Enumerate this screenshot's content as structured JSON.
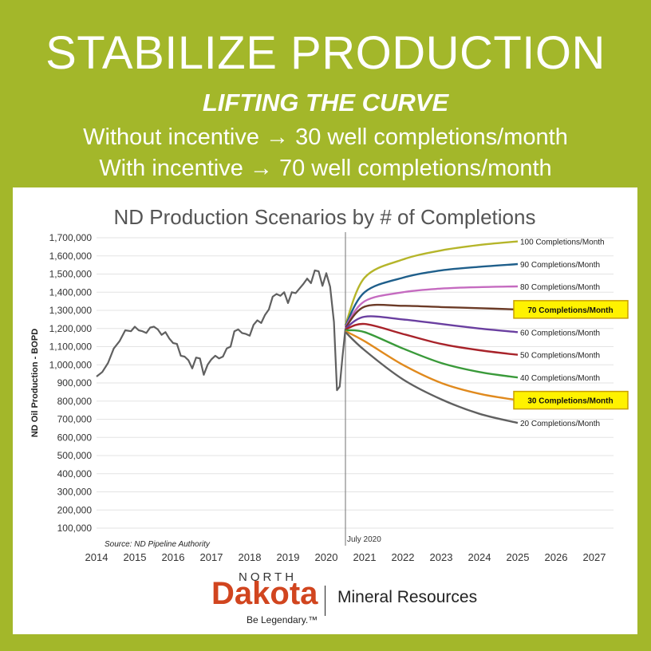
{
  "header": {
    "title": "STABILIZE PRODUCTION",
    "subtitle": "LIFTING THE CURVE",
    "line1": "Without incentive → 30 well completions/month",
    "line2": "With incentive → 70 well completions/month"
  },
  "logo": {
    "north": "NORTH",
    "dakota": "Dakota",
    "tagline": "Be Legendary.™",
    "division": "Mineral Resources"
  },
  "colors": {
    "background": "#a3b72a",
    "highlight_box": "#fff200",
    "highlight_border": "#c8a000"
  },
  "chart_data": {
    "type": "line",
    "title": "ND Production Scenarios by # of Completions",
    "ylabel": "ND Oil Production - BOPD",
    "xlabel": "",
    "ylim": [
      100000,
      1700000
    ],
    "xlim": [
      2014,
      2027.5
    ],
    "grid": true,
    "y_ticks": [
      "1,700,000",
      "1,600,000",
      "1,500,000",
      "1,400,000",
      "1,300,000",
      "1,200,000",
      "1,100,000",
      "1,000,000",
      "900,000",
      "800,000",
      "700,000",
      "600,000",
      "500,000",
      "400,000",
      "300,000",
      "200,000",
      "100,000"
    ],
    "x_ticks": [
      "2014",
      "2015",
      "2016",
      "2017",
      "2018",
      "2019",
      "2020",
      "2021",
      "2022",
      "2023",
      "2024",
      "2025",
      "2026",
      "2027"
    ],
    "source": "Source: ND Pipeline Authority",
    "marker_label": "July 2020",
    "marker_x": 2020.5,
    "historical": {
      "name": "",
      "color": "#606060",
      "x": [
        2014.0,
        2014.15,
        2014.3,
        2014.45,
        2014.6,
        2014.75,
        2014.9,
        2015.0,
        2015.1,
        2015.2,
        2015.3,
        2015.4,
        2015.5,
        2015.6,
        2015.7,
        2015.8,
        2015.9,
        2016.0,
        2016.1,
        2016.2,
        2016.3,
        2016.4,
        2016.5,
        2016.6,
        2016.7,
        2016.8,
        2016.9,
        2017.0,
        2017.1,
        2017.2,
        2017.3,
        2017.4,
        2017.5,
        2017.6,
        2017.7,
        2017.8,
        2017.9,
        2018.0,
        2018.1,
        2018.2,
        2018.3,
        2018.4,
        2018.5,
        2018.6,
        2018.7,
        2018.8,
        2018.9,
        2019.0,
        2019.1,
        2019.2,
        2019.3,
        2019.4,
        2019.5,
        2019.6,
        2019.7,
        2019.8,
        2019.9,
        2020.0,
        2020.1,
        2020.2,
        2020.28,
        2020.35,
        2020.42,
        2020.5
      ],
      "y": [
        935000,
        960000,
        1010000,
        1090000,
        1130000,
        1190000,
        1185000,
        1210000,
        1190000,
        1185000,
        1175000,
        1205000,
        1210000,
        1195000,
        1165000,
        1180000,
        1145000,
        1120000,
        1115000,
        1050000,
        1045000,
        1025000,
        980000,
        1040000,
        1035000,
        945000,
        1000000,
        1030000,
        1050000,
        1035000,
        1045000,
        1090000,
        1100000,
        1185000,
        1195000,
        1175000,
        1170000,
        1160000,
        1220000,
        1245000,
        1230000,
        1275000,
        1305000,
        1375000,
        1390000,
        1380000,
        1400000,
        1340000,
        1400000,
        1395000,
        1420000,
        1445000,
        1475000,
        1450000,
        1520000,
        1515000,
        1435000,
        1505000,
        1430000,
        1235000,
        860000,
        880000,
        1040000,
        1200000
      ]
    },
    "scenarios": [
      {
        "name": "100 Completions/Month",
        "color": "#b5b52a",
        "highlight": false,
        "x": [
          2020.5,
          2021,
          2022,
          2023,
          2024,
          2025
        ],
        "y": [
          1220000,
          1480000,
          1580000,
          1630000,
          1660000,
          1680000
        ]
      },
      {
        "name": "90 Completions/Month",
        "color": "#1f5f8b",
        "highlight": false,
        "x": [
          2020.5,
          2021,
          2022,
          2023,
          2024,
          2025
        ],
        "y": [
          1215000,
          1400000,
          1480000,
          1520000,
          1540000,
          1555000
        ]
      },
      {
        "name": "80 Completions/Month",
        "color": "#c56bc0",
        "highlight": false,
        "x": [
          2020.5,
          2021,
          2022,
          2023,
          2024,
          2025
        ],
        "y": [
          1210000,
          1350000,
          1400000,
          1420000,
          1428000,
          1432000
        ]
      },
      {
        "name": "70 Completions/Month",
        "color": "#6b3a26",
        "highlight": true,
        "x": [
          2020.5,
          2021,
          2022,
          2023,
          2024,
          2025
        ],
        "y": [
          1205000,
          1320000,
          1325000,
          1318000,
          1312000,
          1305000
        ]
      },
      {
        "name": "60 Completions/Month",
        "color": "#6a3fa0",
        "highlight": false,
        "x": [
          2020.5,
          2021,
          2022,
          2023,
          2024,
          2025
        ],
        "y": [
          1200000,
          1265000,
          1250000,
          1225000,
          1200000,
          1180000
        ]
      },
      {
        "name": "50 Completions/Month",
        "color": "#a8232a",
        "highlight": false,
        "x": [
          2020.5,
          2021,
          2022,
          2023,
          2024,
          2025
        ],
        "y": [
          1195000,
          1225000,
          1170000,
          1115000,
          1080000,
          1055000
        ]
      },
      {
        "name": "40 Completions/Month",
        "color": "#3a9a3a",
        "highlight": false,
        "x": [
          2020.5,
          2021,
          2022,
          2023,
          2024,
          2025
        ],
        "y": [
          1190000,
          1180000,
          1090000,
          1010000,
          960000,
          930000
        ]
      },
      {
        "name": "30 Completions/Month",
        "color": "#e08a1e",
        "highlight": true,
        "x": [
          2020.5,
          2021,
          2022,
          2023,
          2024,
          2025
        ],
        "y": [
          1185000,
          1130000,
          1000000,
          900000,
          840000,
          805000
        ]
      },
      {
        "name": "20 Completions/Month",
        "color": "#606060",
        "highlight": false,
        "x": [
          2020.5,
          2021,
          2022,
          2023,
          2024,
          2025
        ],
        "y": [
          1180000,
          1080000,
          920000,
          810000,
          730000,
          680000
        ]
      }
    ]
  }
}
